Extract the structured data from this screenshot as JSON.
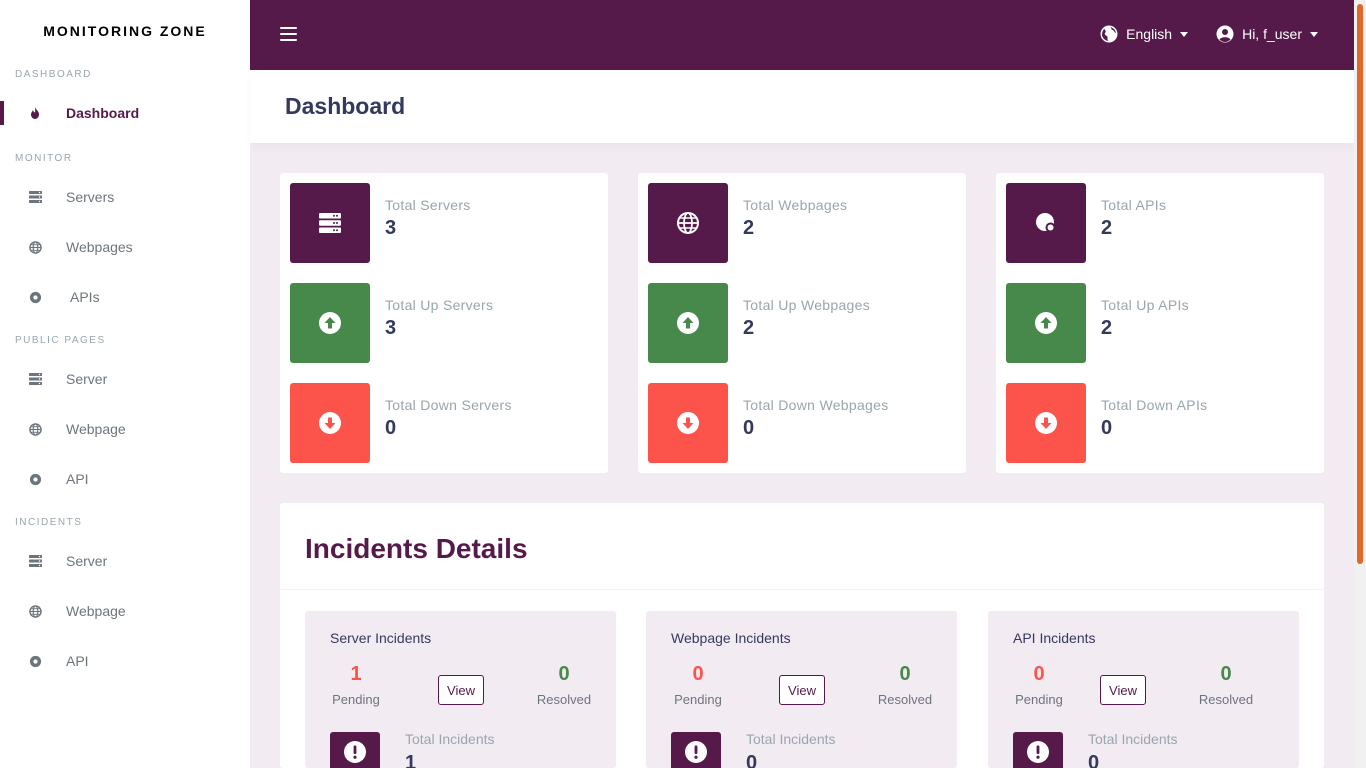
{
  "brand": "MONITORING ZONE",
  "sidebar": {
    "dashboard_header": "DASHBOARD",
    "dashboard": "Dashboard",
    "monitor_header": "MONITOR",
    "monitor": [
      "Servers",
      "Webpages",
      "APIs"
    ],
    "public_header": "PUBLIC PAGES",
    "public": [
      "Server",
      "Webpage",
      "API"
    ],
    "incidents_header": "INCIDENTS",
    "incidents": [
      "Server",
      "Webpage",
      "API"
    ]
  },
  "topbar": {
    "language": "English",
    "user": "Hi, f_user"
  },
  "page": {
    "title": "Dashboard"
  },
  "stats": {
    "servers": {
      "total_label": "Total Servers",
      "total": "3",
      "up_label": "Total Up Servers",
      "up": "3",
      "down_label": "Total Down Servers",
      "down": "0"
    },
    "webpages": {
      "total_label": "Total Webpages",
      "total": "2",
      "up_label": "Total Up Webpages",
      "up": "2",
      "down_label": "Total Down Webpages",
      "down": "0"
    },
    "apis": {
      "total_label": "Total APIs",
      "total": "2",
      "up_label": "Total Up APIs",
      "up": "2",
      "down_label": "Total Down APIs",
      "down": "0"
    }
  },
  "incidents": {
    "title": "Incidents Details",
    "pending_label": "Pending",
    "resolved_label": "Resolved",
    "view_label": "View",
    "total_label": "Total Incidents",
    "server": {
      "title": "Server Incidents",
      "pending": "1",
      "resolved": "0",
      "total": "1"
    },
    "webpage": {
      "title": "Webpage Incidents",
      "pending": "0",
      "resolved": "0",
      "total": "0"
    },
    "api": {
      "title": "API Incidents",
      "pending": "0",
      "resolved": "0",
      "total": "0"
    }
  },
  "colors": {
    "primary": "#551a49",
    "success": "#47894b",
    "danger": "#fc544b",
    "background": "#f2ebf2"
  }
}
